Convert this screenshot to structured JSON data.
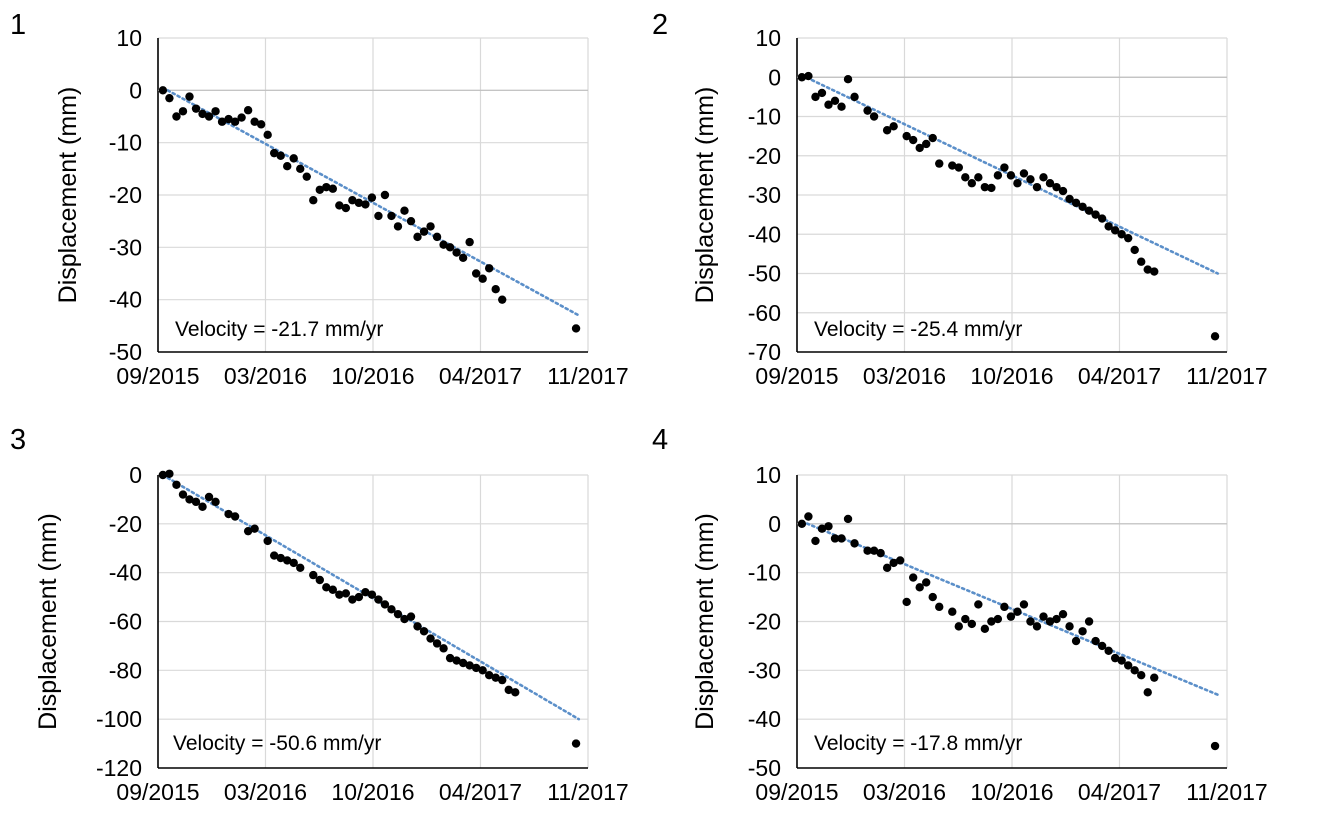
{
  "chart_data": [
    {
      "type": "scatter",
      "panel_label": "1",
      "ylabel": "Displacement (mm)",
      "x_ticks": [
        "09/2015",
        "03/2016",
        "10/2016",
        "04/2017",
        "11/2017"
      ],
      "x_range": [
        "2015-09-01",
        "2017-11-01"
      ],
      "ylim": [
        -50,
        10
      ],
      "y_ticks": [
        10,
        0,
        -10,
        -20,
        -30,
        -40,
        -50
      ],
      "annotation": "Velocity = -21.7 mm/yr",
      "trend": {
        "start": [
          "2015-09-10",
          0.5
        ],
        "end": [
          "2017-10-15",
          -43
        ]
      },
      "points": [
        [
          "2015-09-10",
          0
        ],
        [
          "2015-09-22",
          -1.5
        ],
        [
          "2015-10-05",
          -5
        ],
        [
          "2015-10-17",
          -4
        ],
        [
          "2015-10-29",
          -1.2
        ],
        [
          "2015-11-10",
          -3.5
        ],
        [
          "2015-11-22",
          -4.5
        ],
        [
          "2015-12-04",
          -5
        ],
        [
          "2015-12-16",
          -4
        ],
        [
          "2015-12-28",
          -6
        ],
        [
          "2016-01-09",
          -5.5
        ],
        [
          "2016-01-21",
          -6
        ],
        [
          "2016-02-02",
          -5.2
        ],
        [
          "2016-02-14",
          -3.8
        ],
        [
          "2016-02-26",
          -6
        ],
        [
          "2016-03-09",
          -6.5
        ],
        [
          "2016-03-21",
          -8.5
        ],
        [
          "2016-04-02",
          -12
        ],
        [
          "2016-04-14",
          -12.5
        ],
        [
          "2016-04-26",
          -14.5
        ],
        [
          "2016-05-08",
          -13
        ],
        [
          "2016-05-20",
          -15
        ],
        [
          "2016-06-01",
          -16.5
        ],
        [
          "2016-06-13",
          -21
        ],
        [
          "2016-06-25",
          -19
        ],
        [
          "2016-07-07",
          -18.5
        ],
        [
          "2016-07-19",
          -18.8
        ],
        [
          "2016-07-31",
          -22
        ],
        [
          "2016-08-12",
          -22.5
        ],
        [
          "2016-08-24",
          -21
        ],
        [
          "2016-09-05",
          -21.5
        ],
        [
          "2016-09-17",
          -21.8
        ],
        [
          "2016-09-29",
          -20.5
        ],
        [
          "2016-10-11",
          -24
        ],
        [
          "2016-10-23",
          -20
        ],
        [
          "2016-11-04",
          -24
        ],
        [
          "2016-11-16",
          -26
        ],
        [
          "2016-11-28",
          -23
        ],
        [
          "2016-12-10",
          -25
        ],
        [
          "2016-12-22",
          -28
        ],
        [
          "2017-01-03",
          -27
        ],
        [
          "2017-01-15",
          -26
        ],
        [
          "2017-01-27",
          -28
        ],
        [
          "2017-02-08",
          -29.5
        ],
        [
          "2017-02-20",
          -30
        ],
        [
          "2017-03-04",
          -31
        ],
        [
          "2017-03-16",
          -32
        ],
        [
          "2017-03-28",
          -29
        ],
        [
          "2017-04-09",
          -35
        ],
        [
          "2017-04-21",
          -36
        ],
        [
          "2017-05-03",
          -34
        ],
        [
          "2017-05-15",
          -38
        ],
        [
          "2017-05-27",
          -40
        ],
        [
          "2017-10-10",
          -45.5
        ]
      ]
    },
    {
      "type": "scatter",
      "panel_label": "2",
      "ylabel": "Displacement (mm)",
      "x_ticks": [
        "09/2015",
        "03/2016",
        "10/2016",
        "04/2017",
        "11/2017"
      ],
      "x_range": [
        "2015-09-01",
        "2017-11-01"
      ],
      "ylim": [
        -70,
        10
      ],
      "y_ticks": [
        10,
        0,
        -10,
        -20,
        -30,
        -40,
        -50,
        -60,
        -70
      ],
      "annotation": "Velocity = -25.4 mm/yr",
      "trend": {
        "start": [
          "2015-09-10",
          0.5
        ],
        "end": [
          "2017-10-15",
          -50
        ]
      },
      "points": [
        [
          "2015-09-10",
          0
        ],
        [
          "2015-09-22",
          0.3
        ],
        [
          "2015-10-05",
          -5
        ],
        [
          "2015-10-17",
          -4
        ],
        [
          "2015-10-29",
          -7
        ],
        [
          "2015-11-10",
          -6
        ],
        [
          "2015-11-22",
          -7.5
        ],
        [
          "2015-12-04",
          -0.5
        ],
        [
          "2015-12-16",
          -5
        ],
        [
          "2016-01-09",
          -8.5
        ],
        [
          "2016-01-21",
          -10
        ],
        [
          "2016-02-14",
          -13.5
        ],
        [
          "2016-02-26",
          -12.5
        ],
        [
          "2016-03-21",
          -15
        ],
        [
          "2016-04-02",
          -16
        ],
        [
          "2016-04-14",
          -18
        ],
        [
          "2016-04-26",
          -17
        ],
        [
          "2016-05-08",
          -15.5
        ],
        [
          "2016-05-20",
          -22
        ],
        [
          "2016-06-13",
          -22.5
        ],
        [
          "2016-06-25",
          -23
        ],
        [
          "2016-07-07",
          -25.5
        ],
        [
          "2016-07-19",
          -27
        ],
        [
          "2016-07-31",
          -25.5
        ],
        [
          "2016-08-12",
          -28
        ],
        [
          "2016-08-24",
          -28.2
        ],
        [
          "2016-09-05",
          -25
        ],
        [
          "2016-09-17",
          -23
        ],
        [
          "2016-09-29",
          -25
        ],
        [
          "2016-10-11",
          -27
        ],
        [
          "2016-10-23",
          -24.5
        ],
        [
          "2016-11-04",
          -26
        ],
        [
          "2016-11-16",
          -28
        ],
        [
          "2016-11-28",
          -25.5
        ],
        [
          "2016-12-10",
          -27
        ],
        [
          "2016-12-22",
          -28
        ],
        [
          "2017-01-03",
          -29
        ],
        [
          "2017-01-15",
          -31
        ],
        [
          "2017-01-27",
          -32
        ],
        [
          "2017-02-08",
          -33
        ],
        [
          "2017-02-20",
          -34
        ],
        [
          "2017-03-04",
          -35
        ],
        [
          "2017-03-16",
          -36
        ],
        [
          "2017-03-28",
          -38
        ],
        [
          "2017-04-09",
          -39
        ],
        [
          "2017-04-21",
          -40
        ],
        [
          "2017-05-03",
          -41
        ],
        [
          "2017-05-15",
          -44
        ],
        [
          "2017-05-27",
          -47
        ],
        [
          "2017-06-08",
          -49
        ],
        [
          "2017-06-20",
          -49.5
        ],
        [
          "2017-10-10",
          -66
        ]
      ]
    },
    {
      "type": "scatter",
      "panel_label": "3",
      "ylabel": "Displacement (mm)",
      "x_ticks": [
        "09/2015",
        "03/2016",
        "10/2016",
        "04/2017",
        "11/2017"
      ],
      "x_range": [
        "2015-09-01",
        "2017-11-01"
      ],
      "ylim": [
        -120,
        0
      ],
      "y_ticks": [
        0,
        -20,
        -40,
        -60,
        -80,
        -100,
        -120
      ],
      "annotation": "Velocity = -50.6 mm/yr",
      "trend": {
        "start": [
          "2015-09-10",
          0
        ],
        "end": [
          "2017-10-15",
          -100
        ]
      },
      "points": [
        [
          "2015-09-10",
          0
        ],
        [
          "2015-09-22",
          0.5
        ],
        [
          "2015-10-05",
          -4
        ],
        [
          "2015-10-17",
          -8
        ],
        [
          "2015-10-29",
          -10
        ],
        [
          "2015-11-10",
          -11
        ],
        [
          "2015-11-22",
          -13
        ],
        [
          "2015-12-04",
          -9
        ],
        [
          "2015-12-16",
          -11
        ],
        [
          "2016-01-09",
          -16
        ],
        [
          "2016-01-21",
          -17
        ],
        [
          "2016-02-14",
          -23
        ],
        [
          "2016-02-26",
          -22
        ],
        [
          "2016-03-21",
          -27
        ],
        [
          "2016-04-02",
          -33
        ],
        [
          "2016-04-14",
          -34
        ],
        [
          "2016-04-26",
          -35
        ],
        [
          "2016-05-08",
          -36
        ],
        [
          "2016-05-20",
          -38
        ],
        [
          "2016-06-13",
          -41
        ],
        [
          "2016-06-25",
          -43
        ],
        [
          "2016-07-07",
          -46
        ],
        [
          "2016-07-19",
          -47
        ],
        [
          "2016-07-31",
          -49
        ],
        [
          "2016-08-12",
          -48.5
        ],
        [
          "2016-08-24",
          -51
        ],
        [
          "2016-09-05",
          -50
        ],
        [
          "2016-09-17",
          -48
        ],
        [
          "2016-09-29",
          -49
        ],
        [
          "2016-10-11",
          -51
        ],
        [
          "2016-10-23",
          -53
        ],
        [
          "2016-11-04",
          -55
        ],
        [
          "2016-11-16",
          -57
        ],
        [
          "2016-11-28",
          -59
        ],
        [
          "2016-12-10",
          -58
        ],
        [
          "2016-12-22",
          -62
        ],
        [
          "2017-01-03",
          -64
        ],
        [
          "2017-01-15",
          -67
        ],
        [
          "2017-01-27",
          -69
        ],
        [
          "2017-02-08",
          -71
        ],
        [
          "2017-02-20",
          -75
        ],
        [
          "2017-03-04",
          -76
        ],
        [
          "2017-03-16",
          -77
        ],
        [
          "2017-03-28",
          -78
        ],
        [
          "2017-04-09",
          -79
        ],
        [
          "2017-04-21",
          -80
        ],
        [
          "2017-05-03",
          -82
        ],
        [
          "2017-05-15",
          -83
        ],
        [
          "2017-05-27",
          -84
        ],
        [
          "2017-06-08",
          -88
        ],
        [
          "2017-06-20",
          -89
        ],
        [
          "2017-10-10",
          -110
        ]
      ]
    },
    {
      "type": "scatter",
      "panel_label": "4",
      "ylabel": "Displacement (mm)",
      "x_ticks": [
        "09/2015",
        "03/2016",
        "10/2016",
        "04/2017",
        "11/2017"
      ],
      "x_range": [
        "2015-09-01",
        "2017-11-01"
      ],
      "ylim": [
        -50,
        10
      ],
      "y_ticks": [
        10,
        0,
        -10,
        -20,
        -30,
        -40,
        -50
      ],
      "annotation": "Velocity = -17.8 mm/yr",
      "trend": {
        "start": [
          "2015-09-10",
          0.5
        ],
        "end": [
          "2017-10-15",
          -35
        ]
      },
      "points": [
        [
          "2015-09-10",
          0
        ],
        [
          "2015-09-22",
          1.5
        ],
        [
          "2015-10-05",
          -3.5
        ],
        [
          "2015-10-17",
          -1
        ],
        [
          "2015-10-29",
          -0.5
        ],
        [
          "2015-11-10",
          -3
        ],
        [
          "2015-11-22",
          -3
        ],
        [
          "2015-12-04",
          1
        ],
        [
          "2015-12-16",
          -4
        ],
        [
          "2016-01-09",
          -5.5
        ],
        [
          "2016-01-21",
          -5.5
        ],
        [
          "2016-02-02",
          -6
        ],
        [
          "2016-02-14",
          -9
        ],
        [
          "2016-02-26",
          -8
        ],
        [
          "2016-03-09",
          -7.5
        ],
        [
          "2016-03-21",
          -16
        ],
        [
          "2016-04-02",
          -11
        ],
        [
          "2016-04-14",
          -13
        ],
        [
          "2016-04-26",
          -12
        ],
        [
          "2016-05-08",
          -15
        ],
        [
          "2016-05-20",
          -17
        ],
        [
          "2016-06-13",
          -18
        ],
        [
          "2016-06-25",
          -21
        ],
        [
          "2016-07-07",
          -19.5
        ],
        [
          "2016-07-19",
          -20.5
        ],
        [
          "2016-07-31",
          -16.5
        ],
        [
          "2016-08-12",
          -21.5
        ],
        [
          "2016-08-24",
          -20
        ],
        [
          "2016-09-05",
          -19.5
        ],
        [
          "2016-09-17",
          -17
        ],
        [
          "2016-09-29",
          -19
        ],
        [
          "2016-10-11",
          -18
        ],
        [
          "2016-10-23",
          -16.5
        ],
        [
          "2016-11-04",
          -20
        ],
        [
          "2016-11-16",
          -21
        ],
        [
          "2016-11-28",
          -19
        ],
        [
          "2016-12-10",
          -20
        ],
        [
          "2016-12-22",
          -19.5
        ],
        [
          "2017-01-03",
          -18.5
        ],
        [
          "2017-01-15",
          -21
        ],
        [
          "2017-01-27",
          -24
        ],
        [
          "2017-02-08",
          -22
        ],
        [
          "2017-02-20",
          -20
        ],
        [
          "2017-03-04",
          -24
        ],
        [
          "2017-03-16",
          -25
        ],
        [
          "2017-03-28",
          -26
        ],
        [
          "2017-04-09",
          -27.5
        ],
        [
          "2017-04-21",
          -28
        ],
        [
          "2017-05-03",
          -29
        ],
        [
          "2017-05-15",
          -30
        ],
        [
          "2017-05-27",
          -31
        ],
        [
          "2017-06-08",
          -34.5
        ],
        [
          "2017-06-20",
          -31.5
        ],
        [
          "2017-10-10",
          -45.5
        ]
      ]
    }
  ]
}
